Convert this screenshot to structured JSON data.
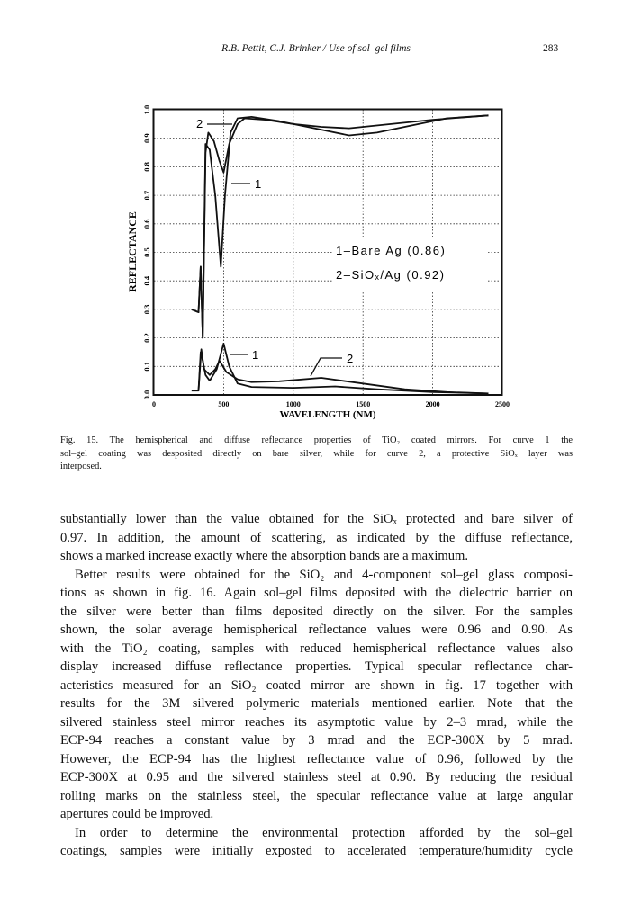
{
  "header": {
    "running_title": "R.B. Pettit, C.J. Brinker / Use of sol–gel films",
    "page_number": "283"
  },
  "chart_data": {
    "type": "line",
    "xlabel": "WAVELENGTH (NM)",
    "ylabel": "REFLECTANCE",
    "xlim": [
      0,
      2500
    ],
    "ylim": [
      0,
      1.0
    ],
    "xticks": [
      "0",
      "500",
      "1000",
      "1500",
      "2000",
      "2500"
    ],
    "yticks": [
      "0.0",
      "0.1",
      "0.2",
      "0.3",
      "0.4",
      "0.5",
      "0.6",
      "0.7",
      "0.8",
      "0.9",
      "1.0"
    ],
    "grid": true,
    "legend": [
      "1–Bare Ag (0.86)",
      "2–SiOₓ/Ag (0.92)"
    ],
    "curve_labels": [
      "2",
      "1",
      "1",
      "2"
    ],
    "series": [
      {
        "name": "1",
        "kind": "hemispherical",
        "x": [
          270,
          320,
          335,
          350,
          370,
          400,
          440,
          480,
          510,
          550,
          600,
          700,
          900,
          1100,
          1400,
          1600,
          1800,
          2100,
          2400
        ],
        "y": [
          0.3,
          0.29,
          0.45,
          0.2,
          0.88,
          0.86,
          0.7,
          0.45,
          0.7,
          0.92,
          0.97,
          0.975,
          0.96,
          0.94,
          0.91,
          0.92,
          0.94,
          0.97,
          0.98
        ]
      },
      {
        "name": "2",
        "kind": "hemispherical",
        "x": [
          270,
          320,
          335,
          350,
          370,
          390,
          430,
          470,
          500,
          540,
          600,
          650,
          800,
          1000,
          1200,
          1400,
          1700,
          2000,
          2400
        ],
        "y": [
          0.3,
          0.29,
          0.45,
          0.2,
          0.85,
          0.92,
          0.89,
          0.82,
          0.78,
          0.88,
          0.95,
          0.97,
          0.965,
          0.95,
          0.94,
          0.935,
          0.95,
          0.965,
          0.98
        ]
      },
      {
        "name": "1",
        "kind": "diffuse",
        "x": [
          270,
          320,
          335,
          350,
          370,
          400,
          450,
          500,
          540,
          600,
          700,
          1000,
          1300,
          1600,
          2000,
          2400
        ],
        "y": [
          0.015,
          0.015,
          0.15,
          0.12,
          0.07,
          0.05,
          0.09,
          0.18,
          0.1,
          0.04,
          0.028,
          0.025,
          0.03,
          0.02,
          0.01,
          0.005
        ]
      },
      {
        "name": "2",
        "kind": "diffuse",
        "x": [
          320,
          340,
          360,
          400,
          440,
          470,
          520,
          600,
          700,
          900,
          1200,
          1500,
          1800,
          2100,
          2400
        ],
        "y": [
          0.015,
          0.16,
          0.09,
          0.07,
          0.09,
          0.12,
          0.08,
          0.055,
          0.045,
          0.048,
          0.06,
          0.04,
          0.02,
          0.01,
          0.005
        ]
      }
    ]
  },
  "caption": {
    "lines": [
      "Fig. 15. The hemispherical and diffuse reflectance properties of TiO₂ coated mirrors. For curve 1 the",
      "sol–gel coating was desposited directly on bare silver, while for curve 2, a protective SiOₓ layer was",
      "interposed."
    ]
  },
  "body": {
    "paragraphs": [
      {
        "indent": false,
        "lines": [
          "substantially lower than the value obtained for the SiOₓ protected and bare silver of",
          "0.97. In addition, the amount of scattering, as indicated by the diffuse reflectance,",
          "shows a marked increase exactly where the absorption bands are a maximum."
        ]
      },
      {
        "indent": true,
        "lines": [
          "Better results were obtained for the SiO₂ and 4-component sol–gel glass composi-",
          "tions as shown in fig. 16. Again sol–gel films deposited with the dielectric barrier on",
          "the silver were better than films deposited directly on the silver. For the samples",
          "shown, the solar average hemispherical reflectance values were 0.96 and 0.90. As",
          "with the TiO₂ coating, samples with reduced hemispherical reflectance values also",
          "display increased diffuse reflectance properties. Typical specular reflectance char-",
          "acteristics measured for an SiO₂ coated mirror are shown in fig. 17 together with",
          "results for the 3M silvered polymeric materials mentioned earlier. Note that the",
          "silvered stainless steel mirror reaches its asymptotic value by 2–3 mrad, while the",
          "ECP-94 reaches a constant value by 3 mrad and the ECP-300X by 5 mrad.",
          "However, the ECP-94 has the highest reflectance value of 0.96, followed by the",
          "ECP-300X at 0.95 and the silvered stainless steel at 0.90. By reducing the residual",
          "rolling marks on the stainless steel, the specular reflectance value at large angular",
          "apertures could be improved."
        ]
      },
      {
        "indent": true,
        "continues": true,
        "lines": [
          "In order to determine the environmental protection afforded by the sol–gel",
          "coatings, samples were initially exposted to accelerated temperature/humidity cycle"
        ]
      }
    ]
  }
}
